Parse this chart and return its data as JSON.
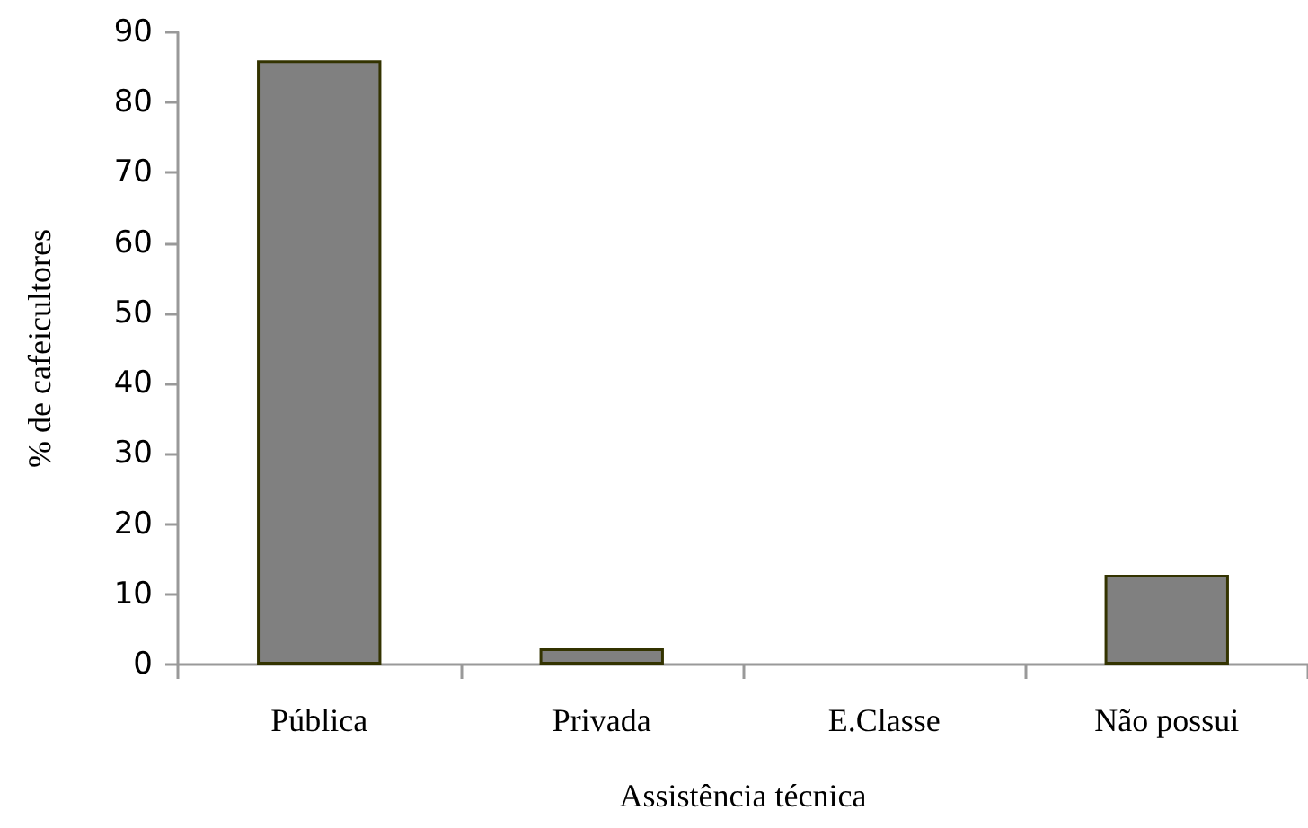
{
  "chart_data": {
    "type": "bar",
    "xlabel": "Assistência técnica",
    "ylabel": "% de cafeicultores",
    "categories": [
      "Pública",
      "Privada",
      "E.Classe",
      "Não possui"
    ],
    "values": [
      86,
      2.3,
      0,
      12.8
    ],
    "color": "#808080",
    "ylim": [
      0,
      90
    ],
    "yticks": [
      0,
      10,
      20,
      30,
      40,
      50,
      60,
      70,
      80,
      90
    ],
    "grid": false
  }
}
